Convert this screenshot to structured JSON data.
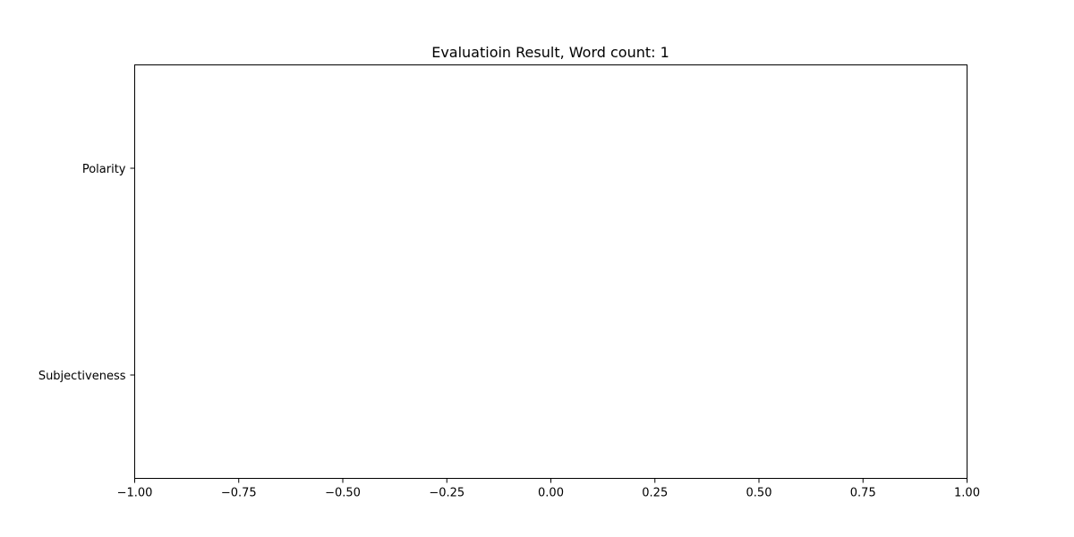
{
  "chart_data": {
    "type": "bar",
    "orientation": "horizontal",
    "title": "Evaluatioin Result, Word count: 1",
    "xlabel": "",
    "ylabel": "",
    "categories": [
      "Polarity",
      "Subjectiveness"
    ],
    "values": [
      0,
      0
    ],
    "xlim": [
      -1.0,
      1.0
    ],
    "xticks": [
      -1.0,
      -0.75,
      -0.5,
      -0.25,
      0.0,
      0.25,
      0.5,
      0.75,
      1.0
    ],
    "xtick_labels": [
      "−1.00",
      "−0.75",
      "−0.50",
      "−0.25",
      "0.00",
      "0.25",
      "0.50",
      "0.75",
      "1.00"
    ],
    "grid": false,
    "legend": "none"
  }
}
